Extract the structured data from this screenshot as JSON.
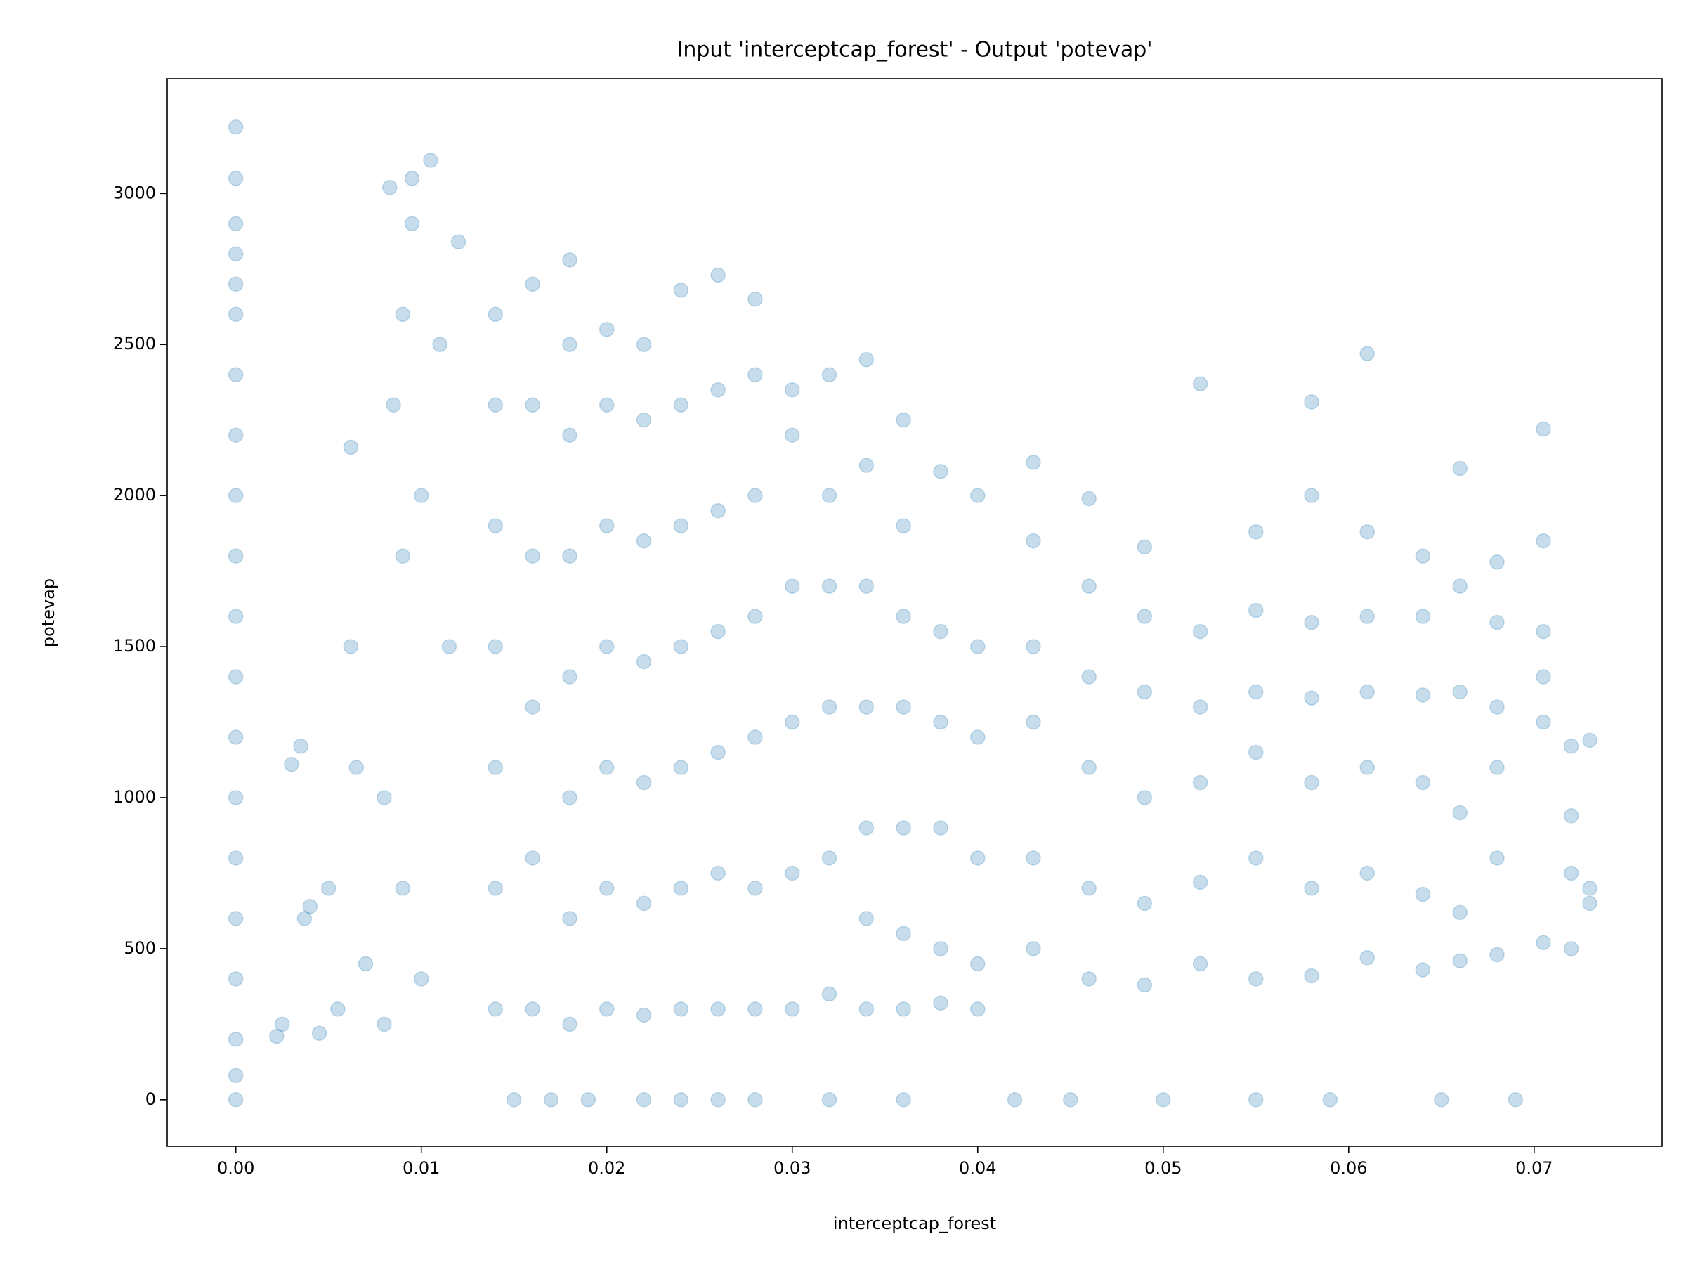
{
  "chart_data": {
    "type": "scatter",
    "title": "Input 'interceptcap_forest' - Output 'potevap'",
    "xlabel": "interceptcap_forest",
    "ylabel": "potevap",
    "color": "#1f77b4",
    "alpha": 0.25,
    "xlim": [
      -0.0037,
      0.0769
    ],
    "ylim": [
      -154,
      3380
    ],
    "xticks": [
      {
        "value": 0,
        "label": "0.00"
      },
      0.01,
      0.02,
      0.03,
      0.04,
      0.05,
      0.06,
      0.07
    ],
    "yticks": [
      0,
      500,
      1000,
      1500,
      2000,
      2500,
      3000
    ],
    "x": [
      0,
      0,
      0,
      0,
      0,
      0,
      0,
      0,
      0,
      0,
      0,
      0,
      0,
      0,
      0,
      0,
      0,
      0,
      0,
      0,
      0.0022,
      0.0025,
      0.003,
      0.0035,
      0.0037,
      0.004,
      0.0045,
      0.005,
      0.0055,
      0.0062,
      0.0062,
      0.0065,
      0.0083,
      0.0095,
      0.0105,
      0.0095,
      0.009,
      0.0085,
      0.01,
      0.009,
      0.011,
      0.012,
      0.0115,
      0.008,
      0.009,
      0.01,
      0.007,
      0.008,
      0.014,
      0.014,
      0.014,
      0.014,
      0.014,
      0.014,
      0.014,
      0.016,
      0.016,
      0.016,
      0.016,
      0.016,
      0.016,
      0.018,
      0.018,
      0.018,
      0.018,
      0.018,
      0.018,
      0.018,
      0.018,
      0.02,
      0.02,
      0.02,
      0.02,
      0.02,
      0.02,
      0.02,
      0.022,
      0.022,
      0.022,
      0.022,
      0.022,
      0.022,
      0.022,
      0.024,
      0.024,
      0.024,
      0.024,
      0.024,
      0.024,
      0.024,
      0.026,
      0.026,
      0.026,
      0.026,
      0.026,
      0.026,
      0.026,
      0.028,
      0.028,
      0.028,
      0.028,
      0.028,
      0.028,
      0.028,
      0.03,
      0.03,
      0.03,
      0.03,
      0.03,
      0.03,
      0.032,
      0.032,
      0.032,
      0.032,
      0.032,
      0.032,
      0.034,
      0.034,
      0.034,
      0.034,
      0.034,
      0.034,
      0.034,
      0.036,
      0.036,
      0.036,
      0.036,
      0.036,
      0.036,
      0.036,
      0.038,
      0.038,
      0.038,
      0.038,
      0.038,
      0.038,
      0.04,
      0.04,
      0.04,
      0.04,
      0.04,
      0.04,
      0.043,
      0.043,
      0.043,
      0.043,
      0.043,
      0.043,
      0.046,
      0.046,
      0.046,
      0.046,
      0.046,
      0.046,
      0.049,
      0.049,
      0.049,
      0.049,
      0.049,
      0.049,
      0.052,
      0.052,
      0.052,
      0.052,
      0.052,
      0.052,
      0.055,
      0.055,
      0.055,
      0.055,
      0.055,
      0.055,
      0.058,
      0.058,
      0.058,
      0.058,
      0.058,
      0.058,
      0.058,
      0.061,
      0.061,
      0.061,
      0.061,
      0.061,
      0.061,
      0.061,
      0.064,
      0.064,
      0.064,
      0.064,
      0.064,
      0.064,
      0.066,
      0.066,
      0.066,
      0.066,
      0.066,
      0.066,
      0.068,
      0.068,
      0.068,
      0.068,
      0.068,
      0.068,
      0.0705,
      0.0705,
      0.0705,
      0.0705,
      0.0705,
      0.0705,
      0.072,
      0.072,
      0.072,
      0.072,
      0.073,
      0.073,
      0.073,
      0.015,
      0.017,
      0.019,
      0.022,
      0.024,
      0.026,
      0.028,
      0.032,
      0.036,
      0.042,
      0.045,
      0.05,
      0.055,
      0.059,
      0.065,
      0.069
    ],
    "y": [
      0,
      80,
      200,
      400,
      600,
      800,
      1000,
      1200,
      1400,
      1600,
      1800,
      2000,
      2200,
      2400,
      2600,
      2700,
      2800,
      2900,
      3050,
      3220,
      210,
      250,
      1110,
      1170,
      600,
      640,
      220,
      700,
      300,
      2160,
      1500,
      1100,
      3020,
      3050,
      3110,
      2900,
      2600,
      2300,
      2000,
      1800,
      2500,
      2840,
      1500,
      1000,
      700,
      400,
      450,
      250,
      300,
      700,
      1100,
      1500,
      1900,
      2300,
      2600,
      300,
      800,
      1300,
      1800,
      2300,
      2700,
      250,
      600,
      1000,
      1400,
      1800,
      2200,
      2500,
      2780,
      300,
      700,
      1100,
      1500,
      1900,
      2300,
      2550,
      280,
      650,
      1050,
      1450,
      1850,
      2250,
      2500,
      300,
      700,
      1100,
      1500,
      1900,
      2300,
      2680,
      300,
      750,
      1150,
      1550,
      1950,
      2350,
      2730,
      300,
      700,
      1200,
      1600,
      2000,
      2400,
      2650,
      300,
      750,
      1250,
      1700,
      2200,
      2350,
      350,
      800,
      1300,
      1700,
      2000,
      2400,
      300,
      600,
      900,
      1300,
      1700,
      2100,
      2450,
      300,
      550,
      900,
      1300,
      1600,
      1900,
      2250,
      320,
      500,
      900,
      1250,
      1550,
      2080,
      300,
      450,
      800,
      1200,
      1500,
      2000,
      500,
      800,
      1250,
      1500,
      1850,
      2110,
      400,
      700,
      1100,
      1400,
      1700,
      1990,
      380,
      650,
      1000,
      1350,
      1600,
      1830,
      450,
      720,
      1050,
      1300,
      1550,
      2370,
      400,
      800,
      1150,
      1350,
      1620,
      1880,
      410,
      700,
      1050,
      1330,
      1580,
      2000,
      2310,
      470,
      750,
      1100,
      1350,
      1600,
      1880,
      2470,
      430,
      680,
      1050,
      1340,
      1600,
      1800,
      460,
      620,
      950,
      1350,
      1700,
      2090,
      480,
      800,
      1100,
      1300,
      1580,
      1780,
      520,
      1250,
      1400,
      1550,
      1850,
      2220,
      500,
      750,
      1170,
      940,
      700,
      1190,
      650,
      0,
      0,
      0,
      0,
      0,
      0,
      0,
      0,
      0,
      0,
      0,
      0,
      0,
      0,
      0,
      0
    ]
  }
}
